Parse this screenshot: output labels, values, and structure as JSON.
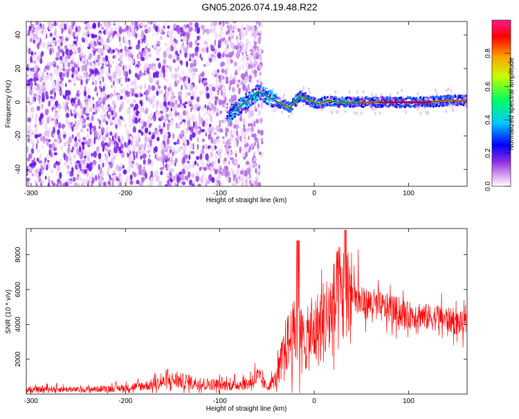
{
  "title": "GN05.2026.074.19.48.R22",
  "chart_data": [
    {
      "type": "heatmap",
      "title": "GN05.2026.074.19.48.R22",
      "xlabel": "Height of straight line (km)",
      "ylabel": "Frequency (Hz)",
      "xlim": [
        -305,
        162
      ],
      "ylim": [
        -50,
        48
      ],
      "x_ticks": [
        -300,
        -200,
        -100,
        0,
        100
      ],
      "y_ticks": [
        -40,
        -20,
        0,
        20,
        40
      ],
      "colorbar": {
        "label": "Normalized spectral amplitude",
        "range": [
          0,
          1
        ],
        "ticks": [
          "0.0",
          "0.2",
          "0.4",
          "0.6",
          "0.8"
        ],
        "colors": [
          "#ffffff",
          "#e0b0f0",
          "#8a2be2",
          "#0000ff",
          "#00ffff",
          "#00ff00",
          "#ffff00",
          "#ff8c00",
          "#ff0000",
          "#ff1493"
        ]
      },
      "signal_line": {
        "x": [
          -90,
          -80,
          -70,
          -60,
          -55,
          -45,
          -35,
          -25,
          -15,
          -5,
          5,
          15,
          25,
          40,
          60,
          80,
          100,
          120,
          140,
          162
        ],
        "y": [
          -7,
          -3,
          1,
          6,
          5,
          2,
          -1,
          -3,
          4,
          1,
          -1,
          1,
          0,
          0,
          0,
          0,
          0,
          0,
          1,
          1
        ]
      }
    },
    {
      "type": "line",
      "xlabel": "Height of straight line (km)",
      "ylabel": "SNR (10 * v/v)",
      "xlim": [
        -305,
        162
      ],
      "ylim": [
        0,
        9500
      ],
      "x_ticks": [
        -300,
        -200,
        -100,
        0,
        100
      ],
      "y_ticks": [
        2000,
        4000,
        6000,
        8000
      ],
      "series": [
        {
          "color": "#ff0000",
          "envelope_x": [
            -305,
            -280,
            -250,
            -200,
            -170,
            -150,
            -120,
            -90,
            -70,
            -60,
            -50,
            -40,
            -30,
            -20,
            -10,
            0,
            10,
            20,
            30,
            40,
            50,
            60,
            70,
            80,
            90,
            100,
            110,
            120,
            130,
            140,
            150,
            162
          ],
          "envelope_y": [
            200,
            300,
            250,
            350,
            550,
            800,
            600,
            500,
            600,
            1000,
            400,
            900,
            2800,
            3500,
            3000,
            3500,
            4200,
            4800,
            5800,
            5600,
            5200,
            5200,
            5000,
            4900,
            4700,
            4500,
            4600,
            4400,
            4400,
            4300,
            4100,
            4000
          ]
        }
      ]
    }
  ]
}
